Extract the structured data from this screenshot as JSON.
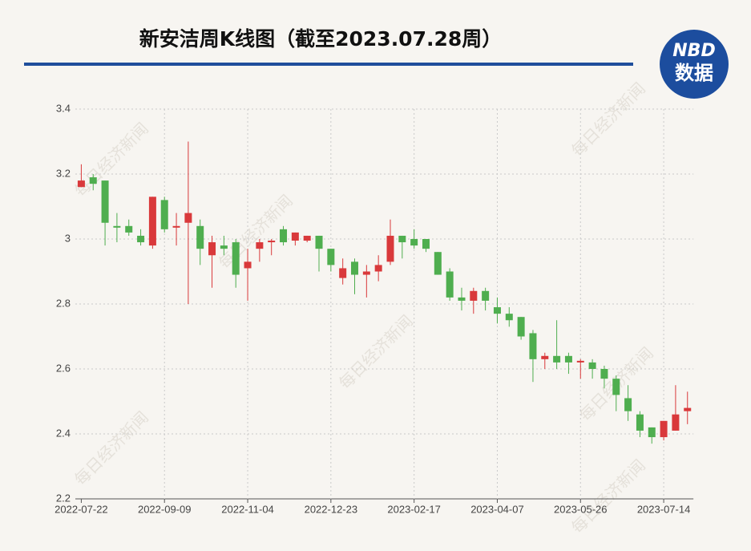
{
  "header": {
    "logo_text": "NBD",
    "logo_subtext": "数据"
  },
  "chart_data": {
    "type": "candlestick",
    "title": "新安洁周K线图（截至2023.07.28周）",
    "watermark": "每日经济新闻",
    "categories": [
      "2022-07-22",
      null,
      null,
      null,
      null,
      null,
      null,
      "2022-09-09",
      null,
      null,
      null,
      null,
      null,
      null,
      "2022-11-04",
      null,
      null,
      null,
      null,
      null,
      null,
      "2022-12-23",
      null,
      null,
      null,
      null,
      null,
      null,
      "2023-02-17",
      null,
      null,
      null,
      null,
      null,
      null,
      "2023-04-07",
      null,
      null,
      null,
      null,
      null,
      null,
      "2023-05-26",
      null,
      null,
      null,
      null,
      null,
      null,
      "2023-07-14",
      null,
      null
    ],
    "open": [
      3.16,
      3.19,
      3.18,
      3.04,
      3.04,
      3.01,
      2.98,
      3.12,
      3.035,
      3.05,
      3.04,
      2.95,
      2.98,
      2.99,
      2.91,
      2.97,
      2.99,
      3.03,
      2.995,
      2.995,
      3.01,
      2.97,
      2.88,
      2.93,
      2.89,
      2.9,
      2.93,
      3.01,
      3.0,
      3.0,
      2.96,
      2.9,
      2.82,
      2.81,
      2.84,
      2.79,
      2.77,
      2.76,
      2.71,
      2.63,
      2.64,
      2.64,
      2.62,
      2.62,
      2.6,
      2.57,
      2.51,
      2.46,
      2.42,
      2.39,
      2.41,
      2.47
    ],
    "high": [
      3.23,
      3.2,
      3.18,
      3.08,
      3.06,
      3.03,
      3.13,
      3.13,
      3.08,
      3.3,
      3.06,
      3.01,
      3.01,
      3.0,
      2.97,
      3.0,
      3.0,
      3.04,
      3.02,
      3.01,
      3.01,
      2.97,
      2.94,
      2.94,
      2.92,
      2.95,
      3.06,
      3.01,
      3.03,
      3.0,
      2.96,
      2.91,
      2.85,
      2.85,
      2.85,
      2.82,
      2.79,
      2.76,
      2.72,
      2.65,
      2.75,
      2.65,
      2.63,
      2.63,
      2.61,
      2.58,
      2.55,
      2.47,
      2.42,
      2.44,
      2.55,
      2.53
    ],
    "low": [
      3.16,
      3.15,
      2.98,
      2.99,
      3.01,
      2.98,
      2.97,
      3.02,
      2.98,
      2.8,
      2.92,
      2.85,
      2.95,
      2.85,
      2.81,
      2.93,
      2.95,
      2.98,
      2.98,
      2.99,
      2.9,
      2.9,
      2.86,
      2.83,
      2.82,
      2.87,
      2.92,
      2.94,
      2.97,
      2.96,
      2.89,
      2.81,
      2.78,
      2.77,
      2.78,
      2.74,
      2.73,
      2.69,
      2.56,
      2.6,
      2.6,
      2.585,
      2.57,
      2.57,
      2.54,
      2.47,
      2.44,
      2.39,
      2.37,
      2.38,
      2.41,
      2.43
    ],
    "close": [
      3.18,
      3.17,
      3.05,
      3.035,
      3.02,
      2.99,
      3.13,
      3.03,
      3.04,
      3.08,
      2.97,
      2.99,
      2.97,
      2.89,
      2.93,
      2.99,
      2.995,
      2.99,
      3.02,
      3.01,
      2.97,
      2.92,
      2.91,
      2.89,
      2.9,
      2.92,
      3.01,
      2.99,
      2.98,
      2.97,
      2.89,
      2.82,
      2.81,
      2.84,
      2.81,
      2.77,
      2.75,
      2.7,
      2.63,
      2.64,
      2.62,
      2.62,
      2.625,
      2.6,
      2.57,
      2.52,
      2.47,
      2.41,
      2.39,
      2.44,
      2.46,
      2.48
    ],
    "up_color": "#d9393b",
    "down_color": "#4fae4f",
    "ylim": [
      2.2,
      3.4
    ],
    "yticks": [
      2.2,
      2.4,
      2.6,
      2.8,
      3,
      3.2,
      3.4
    ],
    "grid": true
  }
}
